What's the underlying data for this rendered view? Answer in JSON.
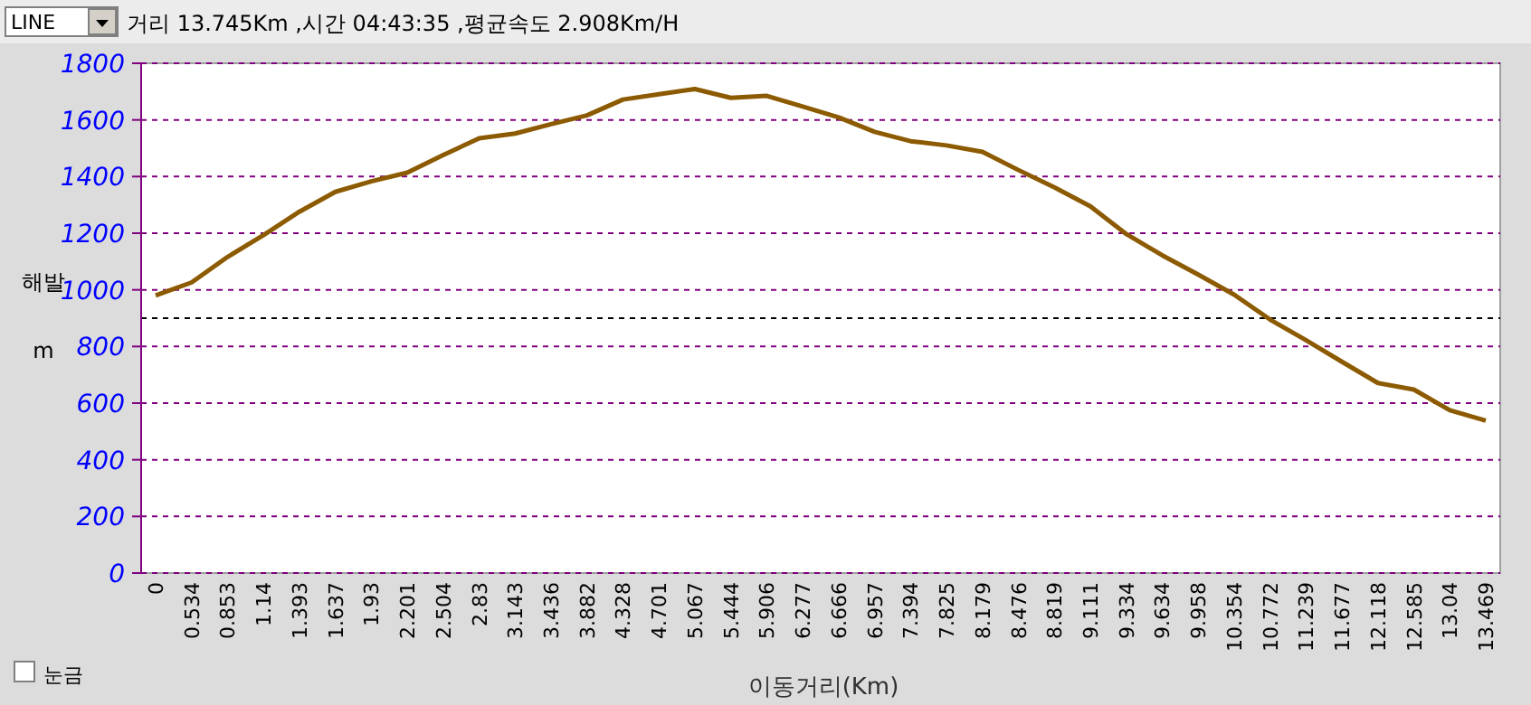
{
  "chart_data": {
    "type": "line",
    "title": "거리 13.745Km ,시간 04:43:35 ,평균속도 2.908Km/H",
    "xlabel": "이동거리(Km)",
    "ylabel": "해발 m",
    "categories": [
      "0",
      "0.534",
      "0.853",
      "1.14",
      "1.393",
      "1.637",
      "1.93",
      "2.201",
      "2.504",
      "2.83",
      "3.143",
      "3.436",
      "3.882",
      "4.328",
      "4.701",
      "5.067",
      "5.444",
      "5.906",
      "6.277",
      "6.666",
      "6.957",
      "7.394",
      "7.825",
      "8.179",
      "8.476",
      "8.819",
      "9.111",
      "9.334",
      "9.634",
      "9.958",
      "10.354",
      "10.772",
      "11.239",
      "11.677",
      "12.118",
      "12.585",
      "13.04",
      "13.469"
    ],
    "series": [
      {
        "color": "#8c5a00",
        "values": [
          980,
          1026,
          1116,
          1193,
          1276,
          1346,
          1383,
          1414,
          1476,
          1535,
          1552,
          1585,
          1616,
          1672,
          1691,
          1709,
          1678,
          1685,
          1647,
          1609,
          1558,
          1525,
          1510,
          1487,
          1423,
          1362,
          1295,
          1197,
          1122,
          1054,
          983,
          895,
          822,
          746,
          671,
          648,
          575,
          538
        ]
      }
    ],
    "ylim": [
      0,
      1800
    ],
    "yticks": [
      0,
      200,
      400,
      600,
      800,
      1000,
      1200,
      1400,
      1600,
      1800
    ],
    "grid": "y",
    "line_style": "solid",
    "marker": "none",
    "ref_lines": [
      {
        "axis": "y",
        "value": 900,
        "color": "#000000",
        "line_style": "dashed"
      }
    ],
    "annotations": [
      "LINE",
      "눈금"
    ]
  }
}
